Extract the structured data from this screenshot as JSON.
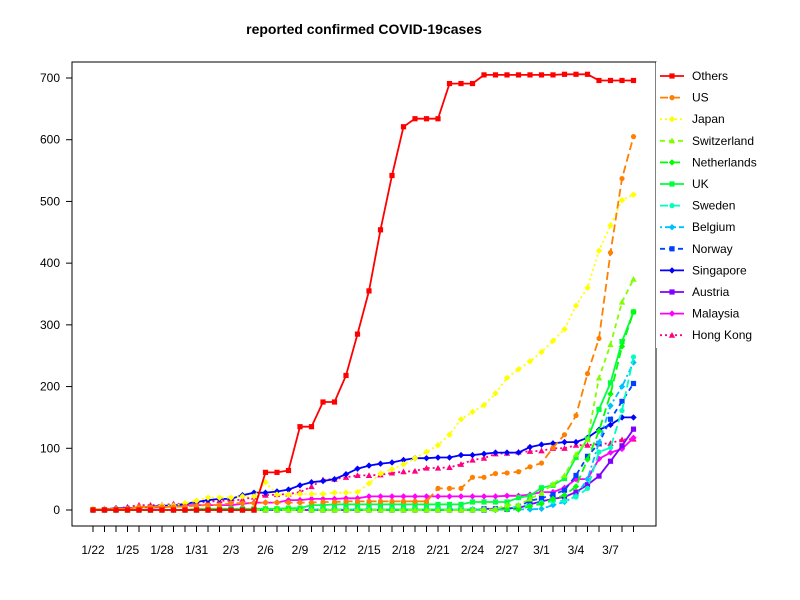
{
  "chart_data": {
    "type": "line",
    "title": "reported confirmed COVID-19cases",
    "xlabel": "",
    "ylabel": "",
    "ylim": [
      0,
      700
    ],
    "yticks": [
      0,
      100,
      200,
      300,
      400,
      500,
      600,
      700
    ],
    "x_tick_labels": [
      "1/22",
      "1/25",
      "1/28",
      "1/31",
      "2/3",
      "2/6",
      "2/9",
      "2/12",
      "2/15",
      "2/18",
      "2/21",
      "2/24",
      "2/27",
      "3/1",
      "3/4",
      "3/7"
    ],
    "x": [
      "1/22",
      "1/23",
      "1/24",
      "1/25",
      "1/26",
      "1/27",
      "1/28",
      "1/29",
      "1/30",
      "1/31",
      "2/1",
      "2/2",
      "2/3",
      "2/4",
      "2/5",
      "2/6",
      "2/7",
      "2/8",
      "2/9",
      "2/10",
      "2/11",
      "2/12",
      "2/13",
      "2/14",
      "2/15",
      "2/16",
      "2/17",
      "2/18",
      "2/19",
      "2/20",
      "2/21",
      "2/22",
      "2/23",
      "2/24",
      "2/25",
      "2/26",
      "2/27",
      "2/28",
      "2/29",
      "3/1",
      "3/2",
      "3/3",
      "3/4",
      "3/5",
      "3/6",
      "3/7",
      "3/8",
      "3/9"
    ],
    "legend_position": "right",
    "grid": false,
    "series": [
      {
        "name": "Others",
        "color": "#FF0000",
        "dash": "solid",
        "marker": "square",
        "values": [
          0,
          0,
          0,
          0,
          0,
          0,
          0,
          0,
          0,
          0,
          0,
          0,
          0,
          0,
          0,
          61,
          61,
          64,
          135,
          135,
          175,
          175,
          218,
          285,
          355,
          454,
          542,
          621,
          634,
          634,
          634,
          691,
          691,
          691,
          705,
          705,
          705,
          705,
          705,
          705,
          705,
          706,
          706,
          706,
          696,
          696,
          696,
          696
        ]
      },
      {
        "name": "US",
        "color": "#FF8000",
        "dash": "longdash",
        "marker": "circle",
        "values": [
          1,
          1,
          2,
          2,
          5,
          5,
          5,
          5,
          6,
          7,
          8,
          8,
          11,
          11,
          11,
          12,
          12,
          12,
          12,
          12,
          13,
          13,
          14,
          14,
          14,
          14,
          14,
          14,
          14,
          14,
          35,
          35,
          35,
          53,
          53,
          59,
          60,
          62,
          70,
          76,
          101,
          122,
          153,
          221,
          278,
          417,
          537,
          605
        ]
      },
      {
        "name": "Japan",
        "color": "#FFFF00",
        "dash": "dotted",
        "marker": "diamond",
        "values": [
          2,
          1,
          2,
          2,
          4,
          4,
          7,
          7,
          11,
          15,
          20,
          20,
          20,
          22,
          22,
          45,
          25,
          25,
          26,
          26,
          26,
          28,
          28,
          29,
          43,
          59,
          66,
          74,
          84,
          94,
          105,
          122,
          147,
          159,
          170,
          189,
          214,
          228,
          241,
          256,
          274,
          293,
          331,
          360,
          420,
          461,
          502,
          511
        ]
      },
      {
        "name": "Switzerland",
        "color": "#80FF00",
        "dash": "dashed",
        "marker": "triangle",
        "values": [
          0,
          0,
          0,
          0,
          0,
          0,
          0,
          0,
          0,
          0,
          0,
          0,
          0,
          0,
          0,
          0,
          0,
          0,
          0,
          0,
          0,
          0,
          0,
          0,
          0,
          0,
          0,
          0,
          0,
          0,
          0,
          0,
          0,
          0,
          1,
          1,
          8,
          8,
          18,
          27,
          42,
          56,
          90,
          114,
          214,
          268,
          337,
          374
        ]
      },
      {
        "name": "Netherlands",
        "color": "#00FF00",
        "dash": "longdash",
        "marker": "diamond",
        "values": [
          0,
          0,
          0,
          0,
          0,
          0,
          0,
          0,
          0,
          0,
          0,
          0,
          0,
          0,
          0,
          0,
          0,
          0,
          0,
          0,
          0,
          0,
          0,
          0,
          0,
          0,
          0,
          0,
          0,
          0,
          0,
          0,
          0,
          0,
          0,
          0,
          1,
          1,
          6,
          10,
          18,
          24,
          38,
          82,
          128,
          188,
          265,
          321
        ]
      },
      {
        "name": "UK",
        "color": "#00FF40",
        "dash": "solid",
        "marker": "square",
        "values": [
          0,
          0,
          0,
          0,
          0,
          0,
          0,
          0,
          0,
          2,
          2,
          2,
          2,
          2,
          2,
          2,
          2,
          3,
          3,
          8,
          8,
          9,
          9,
          9,
          9,
          9,
          9,
          9,
          9,
          9,
          9,
          9,
          9,
          13,
          13,
          13,
          13,
          20,
          23,
          36,
          40,
          51,
          85,
          115,
          163,
          206,
          273,
          321
        ]
      },
      {
        "name": "Sweden",
        "color": "#00FFBF",
        "dash": "longdash",
        "marker": "circle",
        "values": [
          0,
          0,
          0,
          0,
          0,
          0,
          0,
          0,
          0,
          0,
          1,
          1,
          1,
          1,
          1,
          1,
          1,
          1,
          1,
          1,
          1,
          1,
          1,
          1,
          1,
          1,
          1,
          1,
          1,
          1,
          1,
          1,
          1,
          1,
          1,
          1,
          1,
          7,
          7,
          12,
          14,
          15,
          21,
          35,
          94,
          101,
          161,
          248
        ]
      },
      {
        "name": "Belgium",
        "color": "#00BFFF",
        "dash": "dotdash",
        "marker": "diamond",
        "values": [
          0,
          0,
          0,
          0,
          0,
          0,
          0,
          0,
          0,
          0,
          0,
          0,
          0,
          1,
          1,
          1,
          1,
          1,
          1,
          1,
          1,
          1,
          1,
          1,
          1,
          1,
          1,
          1,
          1,
          1,
          1,
          1,
          1,
          1,
          1,
          1,
          1,
          1,
          1,
          2,
          8,
          13,
          23,
          50,
          109,
          169,
          200,
          239
        ]
      },
      {
        "name": "Norway",
        "color": "#0040FF",
        "dash": "dashed",
        "marker": "square",
        "values": [
          0,
          0,
          0,
          0,
          0,
          0,
          0,
          0,
          0,
          0,
          0,
          0,
          0,
          0,
          0,
          0,
          0,
          0,
          0,
          0,
          0,
          0,
          0,
          0,
          0,
          0,
          0,
          0,
          0,
          0,
          0,
          0,
          0,
          0,
          0,
          1,
          1,
          6,
          15,
          19,
          25,
          32,
          56,
          87,
          108,
          147,
          176,
          205
        ]
      },
      {
        "name": "Singapore",
        "color": "#0000FF",
        "dash": "solid",
        "marker": "diamond",
        "values": [
          0,
          1,
          3,
          3,
          4,
          5,
          7,
          7,
          10,
          13,
          16,
          18,
          18,
          24,
          28,
          28,
          30,
          33,
          40,
          45,
          47,
          50,
          58,
          67,
          72,
          75,
          77,
          81,
          84,
          84,
          85,
          85,
          89,
          89,
          91,
          93,
          93,
          93,
          102,
          106,
          108,
          110,
          110,
          117,
          130,
          138,
          150,
          150
        ]
      },
      {
        "name": "Austria",
        "color": "#8000FF",
        "dash": "solid",
        "marker": "square",
        "values": [
          0,
          0,
          0,
          0,
          0,
          0,
          0,
          0,
          0,
          0,
          0,
          0,
          0,
          0,
          0,
          0,
          0,
          0,
          0,
          0,
          0,
          0,
          0,
          0,
          0,
          0,
          0,
          0,
          0,
          0,
          0,
          0,
          0,
          0,
          2,
          2,
          3,
          3,
          9,
          14,
          18,
          21,
          29,
          41,
          55,
          79,
          104,
          131
        ]
      },
      {
        "name": "Malaysia",
        "color": "#FF00FF",
        "dash": "solid",
        "marker": "diamond",
        "values": [
          0,
          0,
          0,
          3,
          4,
          4,
          4,
          7,
          8,
          8,
          8,
          8,
          8,
          10,
          12,
          12,
          12,
          16,
          16,
          18,
          18,
          18,
          19,
          19,
          22,
          22,
          22,
          22,
          22,
          22,
          22,
          22,
          22,
          22,
          22,
          22,
          23,
          23,
          25,
          29,
          29,
          36,
          50,
          50,
          83,
          93,
          99,
          117
        ]
      },
      {
        "name": "Hong Kong",
        "color": "#FF0080",
        "dash": "dotted",
        "marker": "triangle",
        "values": [
          0,
          2,
          2,
          5,
          8,
          8,
          8,
          10,
          10,
          12,
          13,
          15,
          15,
          17,
          21,
          24,
          25,
          26,
          29,
          38,
          49,
          50,
          53,
          56,
          56,
          57,
          60,
          62,
          63,
          68,
          68,
          69,
          74,
          81,
          84,
          91,
          92,
          94,
          95,
          96,
          100,
          100,
          105,
          105,
          107,
          108,
          114,
          115
        ]
      }
    ]
  }
}
